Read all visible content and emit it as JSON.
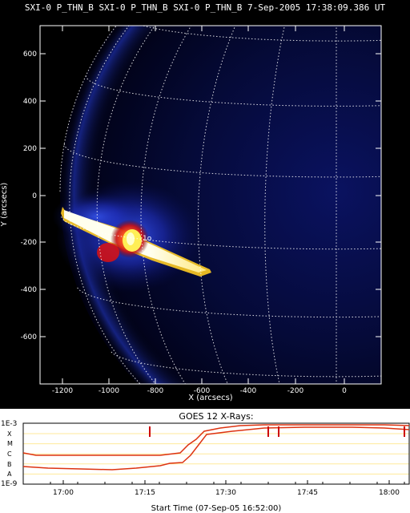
{
  "header": {
    "title": "SXI-0 P_THN_B SXI-0 P_THN_B SXI-0 P_THN_B  7-Sep-2005 17:38:09.386 UT"
  },
  "image_panel": {
    "x_label": "X (arcsecs)",
    "y_label": "Y (arcsecs)",
    "x_ticks": [
      "-1200",
      "-1000",
      "-800",
      "-600",
      "-400",
      "-200",
      "0"
    ],
    "y_ticks": [
      "600",
      "400",
      "200",
      "0",
      "-200",
      "-400",
      "-600"
    ]
  },
  "goes_panel": {
    "title": "GOES 12 X-Rays:",
    "flux_ticks": [
      "1E-3",
      "X",
      "M",
      "C",
      "B",
      "A",
      "1E-9"
    ],
    "time_ticks": [
      "17:00",
      "17:15",
      "17:30",
      "17:45",
      "18:00"
    ],
    "x_label": "Start Time (07-Sep-05 16:52:00)",
    "line_color": "#dd3311",
    "marker_color": "#cc0000"
  }
}
